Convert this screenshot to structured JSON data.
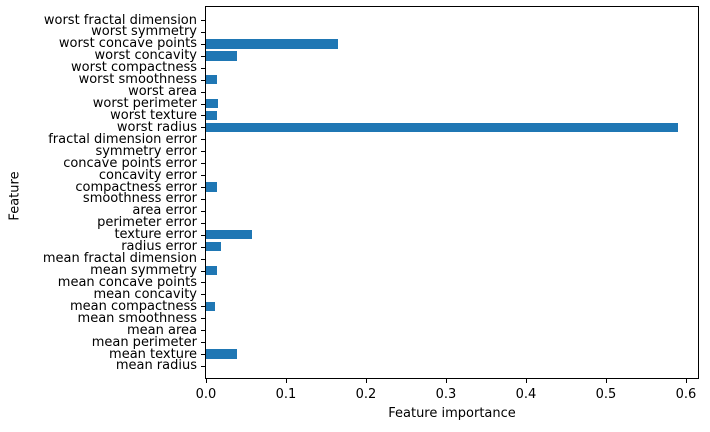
{
  "figure": {
    "background": "#ffffff"
  },
  "chart_data": {
    "type": "bar",
    "orientation": "horizontal",
    "title": "",
    "xlabel": "Feature importance",
    "ylabel": "Feature",
    "grid": false,
    "legend": null,
    "bar_color": "#1f77b4",
    "xlim": [
      0,
      0.615
    ],
    "xticks": [
      0.0,
      0.1,
      0.2,
      0.3,
      0.4,
      0.5,
      0.6
    ],
    "xtick_labels": [
      "0.0",
      "0.1",
      "0.2",
      "0.3",
      "0.4",
      "0.5",
      "0.6"
    ],
    "row_order": "top-to-bottom",
    "categories": [
      "worst fractal dimension",
      "worst symmetry",
      "worst concave points",
      "worst concavity",
      "worst compactness",
      "worst smoothness",
      "worst area",
      "worst perimeter",
      "worst texture",
      "worst radius",
      "fractal dimension error",
      "symmetry error",
      "concave points error",
      "concavity error",
      "compactness error",
      "smoothness error",
      "area error",
      "perimeter error",
      "texture error",
      "radius error",
      "mean fractal dimension",
      "mean symmetry",
      "mean concave points",
      "mean concavity",
      "mean compactness",
      "mean smoothness",
      "mean area",
      "mean perimeter",
      "mean texture",
      "mean radius"
    ],
    "values": [
      0,
      0,
      0.165,
      0.039,
      0,
      0.014,
      0,
      0.015,
      0.014,
      0.59,
      0,
      0,
      0,
      0,
      0.014,
      0,
      0,
      0,
      0.057,
      0.019,
      0,
      0.014,
      0,
      0,
      0.011,
      0,
      0,
      0,
      0.039,
      0
    ]
  }
}
